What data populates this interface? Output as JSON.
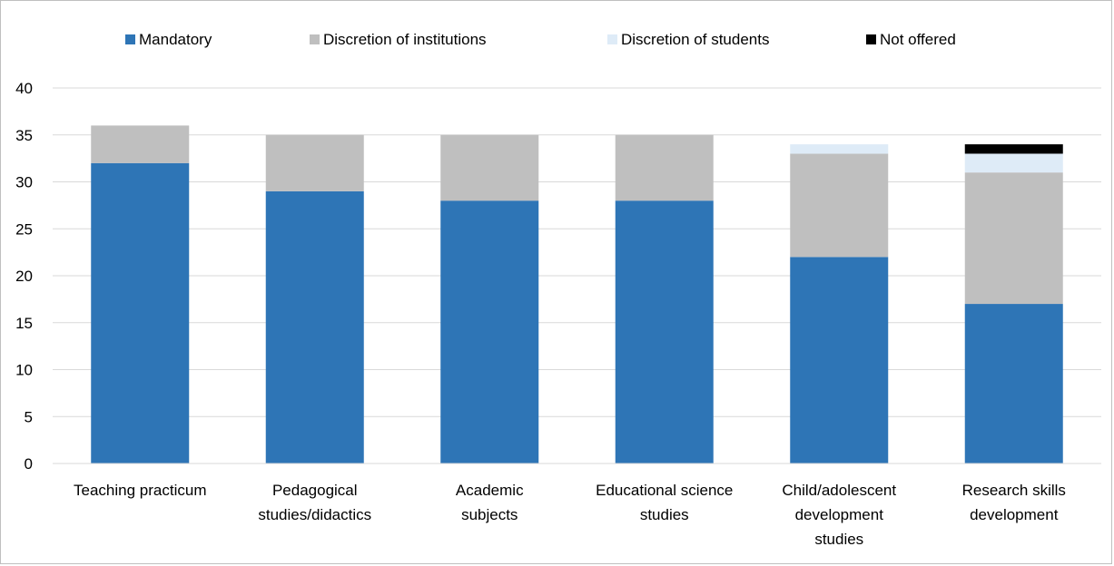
{
  "chart_data": {
    "type": "bar",
    "stacked": true,
    "categories": [
      [
        "Teaching practicum"
      ],
      [
        "Pedagogical",
        "studies/didactics"
      ],
      [
        "Academic",
        "subjects"
      ],
      [
        "Educational science",
        "studies"
      ],
      [
        "Child/adolescent",
        "development",
        "studies"
      ],
      [
        "Research skills",
        "development"
      ]
    ],
    "series": [
      {
        "name": "Mandatory",
        "color": "#2e75b6",
        "values": [
          32,
          29,
          28,
          28,
          22,
          17
        ]
      },
      {
        "name": "Discretion of institutions",
        "color": "#bfbfbf",
        "values": [
          4,
          6,
          7,
          7,
          11,
          14
        ]
      },
      {
        "name": "Discretion of students",
        "color": "#deebf7",
        "values": [
          0,
          0,
          0,
          0,
          1,
          2
        ]
      },
      {
        "name": "Not offered",
        "color": "#000000",
        "values": [
          0,
          0,
          0,
          0,
          0,
          1
        ]
      }
    ],
    "ylim": [
      0,
      40
    ],
    "yticks": [
      0,
      5,
      10,
      15,
      20,
      25,
      30,
      35,
      40
    ],
    "grid": true,
    "gridline_color": "#d9d9d9",
    "legend_position": "top"
  }
}
